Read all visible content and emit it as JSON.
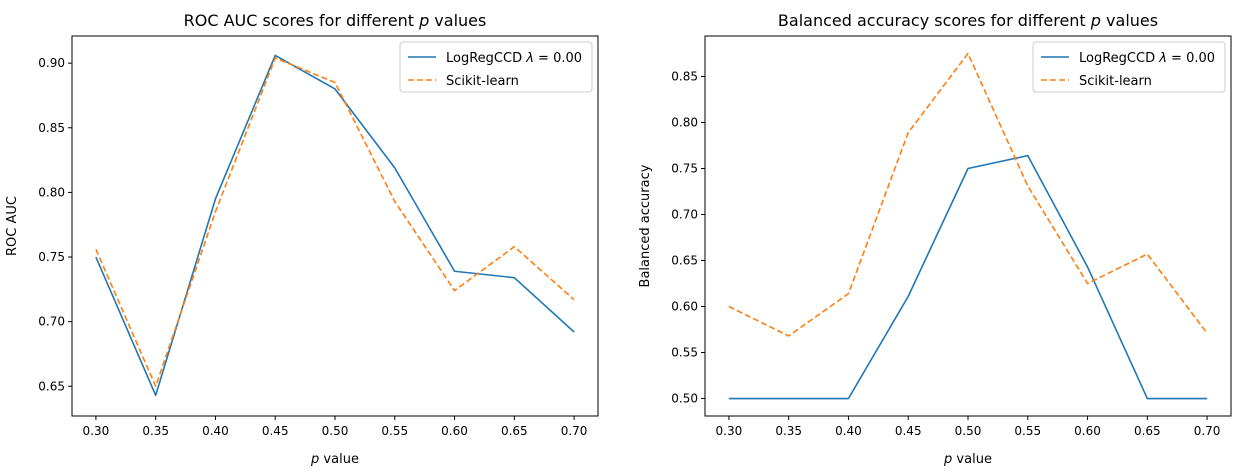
{
  "chart_data": [
    {
      "type": "line",
      "title": "ROC AUC scores for different p values",
      "title_parts": {
        "before": "ROC AUC scores for different ",
        "italic": "p",
        "after": " values"
      },
      "xlabel": "p value",
      "xlabel_parts": {
        "italic": "p",
        "after": " value"
      },
      "ylabel": "ROC AUC",
      "x": [
        0.3,
        0.35,
        0.4,
        0.45,
        0.5,
        0.55,
        0.6,
        0.65,
        0.7
      ],
      "xlim": [
        0.28,
        0.72
      ],
      "ylim": [
        0.627,
        0.921
      ],
      "xticks": [
        "0.30",
        "0.35",
        "0.40",
        "0.45",
        "0.50",
        "0.55",
        "0.60",
        "0.65",
        "0.70"
      ],
      "yticks": [
        "0.65",
        "0.70",
        "0.75",
        "0.80",
        "0.85",
        "0.90"
      ],
      "ytick_values": [
        0.65,
        0.7,
        0.75,
        0.8,
        0.85,
        0.9
      ],
      "legend_position": "top-right",
      "grid": false,
      "series": [
        {
          "name": "LogRegCCD λ = 0.00",
          "name_parts": {
            "before": "LogRegCCD ",
            "italic": "λ",
            "after": " = 0.00"
          },
          "color": "#1f77b4",
          "dash": "solid",
          "values": [
            0.75,
            0.643,
            0.795,
            0.906,
            0.88,
            0.819,
            0.739,
            0.734,
            0.692
          ]
        },
        {
          "name": "Scikit-learn",
          "color": "#ff7f0e",
          "dash": "dashed",
          "values": [
            0.756,
            0.65,
            0.785,
            0.904,
            0.885,
            0.793,
            0.724,
            0.758,
            0.717
          ]
        }
      ]
    },
    {
      "type": "line",
      "title": "Balanced accuracy scores for different p values",
      "title_parts": {
        "before": "Balanced accuracy scores for different ",
        "italic": "p",
        "after": " values"
      },
      "xlabel": "p value",
      "xlabel_parts": {
        "italic": "p",
        "after": " value"
      },
      "ylabel": "Balanced accuracy",
      "x": [
        0.3,
        0.35,
        0.4,
        0.45,
        0.5,
        0.55,
        0.6,
        0.65,
        0.7
      ],
      "xlim": [
        0.28,
        0.72
      ],
      "ylim": [
        0.481,
        0.894
      ],
      "xticks": [
        "0.30",
        "0.35",
        "0.40",
        "0.45",
        "0.50",
        "0.55",
        "0.60",
        "0.65",
        "0.70"
      ],
      "yticks": [
        "0.50",
        "0.55",
        "0.60",
        "0.65",
        "0.70",
        "0.75",
        "0.80",
        "0.85"
      ],
      "ytick_values": [
        0.5,
        0.55,
        0.6,
        0.65,
        0.7,
        0.75,
        0.8,
        0.85
      ],
      "legend_position": "top-right",
      "grid": false,
      "series": [
        {
          "name": "LogRegCCD λ = 0.00",
          "name_parts": {
            "before": "LogRegCCD ",
            "italic": "λ",
            "after": " = 0.00"
          },
          "color": "#1f77b4",
          "dash": "solid",
          "values": [
            0.5,
            0.5,
            0.5,
            0.611,
            0.75,
            0.764,
            0.643,
            0.5,
            0.5
          ]
        },
        {
          "name": "Scikit-learn",
          "color": "#ff7f0e",
          "dash": "dashed",
          "values": [
            0.6,
            0.568,
            0.614,
            0.789,
            0.875,
            0.731,
            0.625,
            0.657,
            0.571
          ]
        }
      ]
    }
  ]
}
